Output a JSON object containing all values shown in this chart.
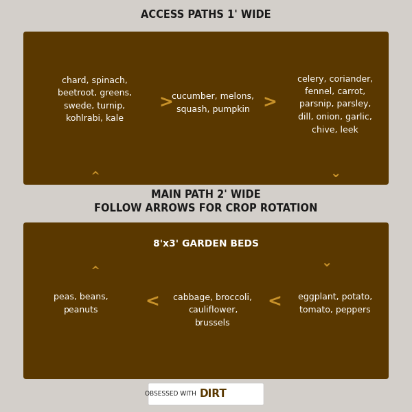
{
  "bg_color": "#d3cfca",
  "box_color": "#5a3800",
  "white": "#ffffff",
  "gold": "#c8922a",
  "dark_text": "#1a1a1a",
  "title1": "ACCESS PATHS 1' WIDE",
  "title2_line1": "MAIN PATH 2' WIDE",
  "title2_line2": "FOLLOW ARROWS FOR CROP ROTATION",
  "box2_title": "8'x3' GARDEN BEDS",
  "top_box": {
    "left_text": "chard, spinach,\nbeetroot, greens,\nswede, turnip,\nkohlrabi, kale",
    "mid_text": "cucumber, melons,\nsquash, pumpkin",
    "right_text": "celery, coriander,\nfennel, carrot,\nparsnip, parsley,\ndill, onion, garlic,\nchive, leek"
  },
  "bottom_box": {
    "left_text": "peas, beans,\npeanuts",
    "mid_text": "cabbage, broccoli,\ncauliflower,\nbrussels",
    "right_text": "eggplant, potato,\ntomato, peppers"
  },
  "watermark_normal": "OBSESSED WITH ",
  "watermark_bold": "DIRT"
}
